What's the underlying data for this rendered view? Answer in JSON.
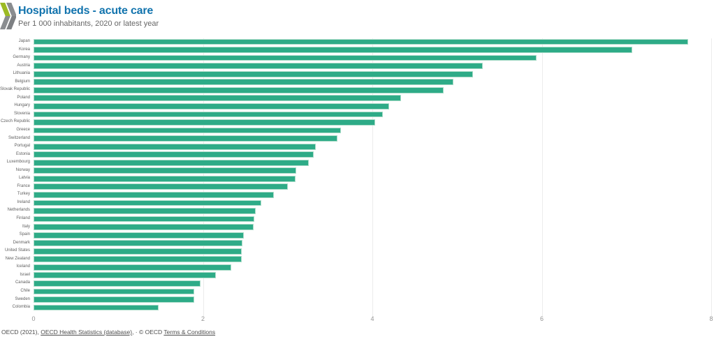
{
  "header": {
    "title": "Hospital beds - acute care",
    "subtitle": "Per 1 000 inhabitants, 2020 or latest year"
  },
  "chart_data": {
    "type": "bar",
    "orientation": "horizontal",
    "title": "Hospital beds - acute care",
    "subtitle": "Per 1 000 inhabitants, 2020 or latest year",
    "xlabel": "",
    "ylabel": "",
    "xlim": [
      0,
      8
    ],
    "x_ticks": [
      0,
      2,
      4,
      6,
      8
    ],
    "grid": "vertical light gridlines at ticks",
    "legend": "none",
    "categories": [
      "Japan",
      "Korea",
      "Germany",
      "Austria",
      "Lithuania",
      "Belgium",
      "Slovak Republic",
      "Poland",
      "Hungary",
      "Slovenia",
      "Czech Republic",
      "Greece",
      "Switzerland",
      "Portugal",
      "Estonia",
      "Luxembourg",
      "Norway",
      "Latvia",
      "France",
      "Turkey",
      "Ireland",
      "Netherlands",
      "Finland",
      "Italy",
      "Spain",
      "Denmark",
      "United States",
      "New Zealand",
      "Iceland",
      "Israel",
      "Canada",
      "Chile",
      "Sweden",
      "Colombia"
    ],
    "values": [
      7.73,
      7.07,
      5.94,
      5.3,
      5.19,
      4.96,
      4.84,
      4.34,
      4.2,
      4.12,
      4.03,
      3.63,
      3.59,
      3.33,
      3.31,
      3.25,
      3.1,
      3.09,
      3.0,
      2.84,
      2.69,
      2.62,
      2.61,
      2.6,
      2.48,
      2.47,
      2.46,
      2.46,
      2.33,
      2.15,
      1.97,
      1.9,
      1.9,
      1.48
    ]
  },
  "footer": {
    "prefix": "OECD (2021), ",
    "database_link": "OECD Health Statistics (database)",
    "middle": ", · © OECD ",
    "terms_link": "Terms & Conditions"
  },
  "colors": {
    "bar": "#2eab87",
    "bar_edge": "#aadcc8",
    "title": "#1173ad",
    "subtitle": "#666666",
    "country_label": "#5f5f5f",
    "axis_label": "#949494",
    "gridline": "#ececec",
    "footer_text": "#4d4d4d",
    "logo_green": "#9cba24",
    "logo_gray": "#8a8d90",
    "logo_gray_dark": "#7d8083"
  }
}
